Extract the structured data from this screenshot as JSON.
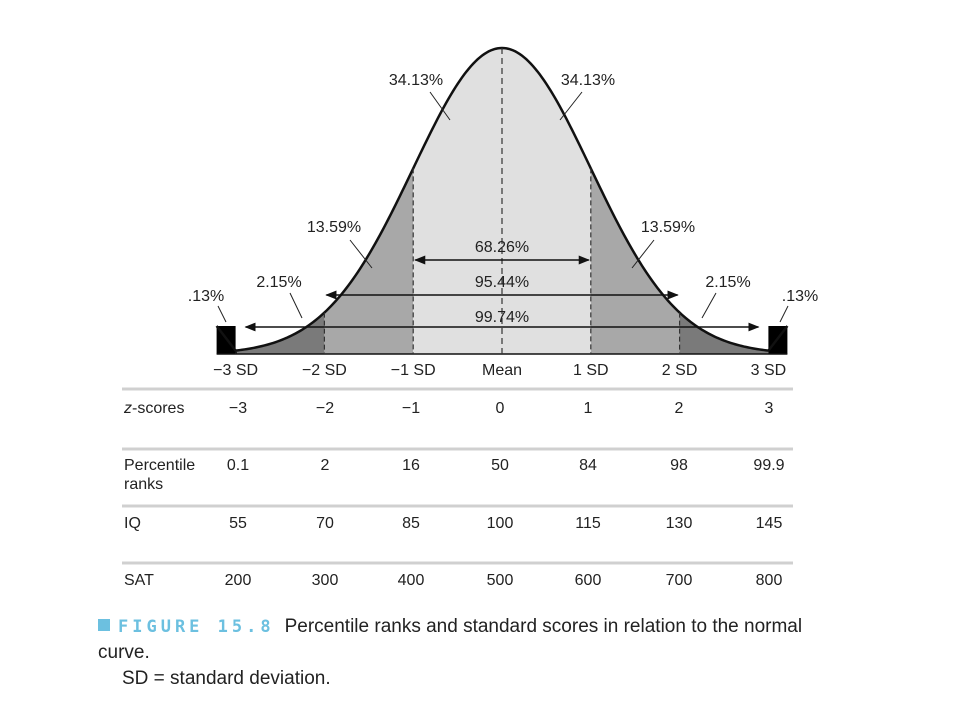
{
  "chart_data": {
    "type": "area",
    "title": "",
    "curve": "normal",
    "sd_labels": [
      "−3 SD",
      "−2 SD",
      "−1 SD",
      "Mean",
      "1 SD",
      "2 SD",
      "3 SD"
    ],
    "x": [
      -3,
      -2,
      -1,
      0,
      1,
      2,
      3
    ],
    "areas": {
      "center_left": "34.13%",
      "center_right": "34.13%",
      "mid_left": "13.59%",
      "mid_right": "13.59%",
      "outer_left": "2.15%",
      "outer_right": "2.15%",
      "tail_left": ".13%",
      "tail_right": ".13%"
    },
    "spans": [
      {
        "label": "68.26%",
        "from": -1,
        "to": 1
      },
      {
        "label": "95.44%",
        "from": -2,
        "to": 2
      },
      {
        "label": "99.74%",
        "from": -3,
        "to": 3
      }
    ],
    "colors": {
      "center": "#e0e0e0",
      "mid": "#a8a8a8",
      "outer": "#7a7a7a",
      "tail": "#000000",
      "outline": "#111111"
    }
  },
  "table": {
    "rows": [
      {
        "label": "z-scores",
        "values": [
          "−3",
          "−2",
          "−1",
          "0",
          "1",
          "2",
          "3"
        ]
      },
      {
        "label": "Percentile ranks",
        "values": [
          "0.1",
          "2",
          "16",
          "50",
          "84",
          "98",
          "99.9"
        ]
      },
      {
        "label": "IQ",
        "values": [
          "55",
          "70",
          "85",
          "100",
          "115",
          "130",
          "145"
        ]
      },
      {
        "label": "SAT",
        "values": [
          "200",
          "300",
          "400",
          "500",
          "600",
          "700",
          "800"
        ]
      }
    ]
  },
  "caption": {
    "figure_label": "FIGURE 15.8",
    "text": "Percentile ranks and standard scores in relation to the normal curve.",
    "text2": "SD = standard deviation."
  }
}
